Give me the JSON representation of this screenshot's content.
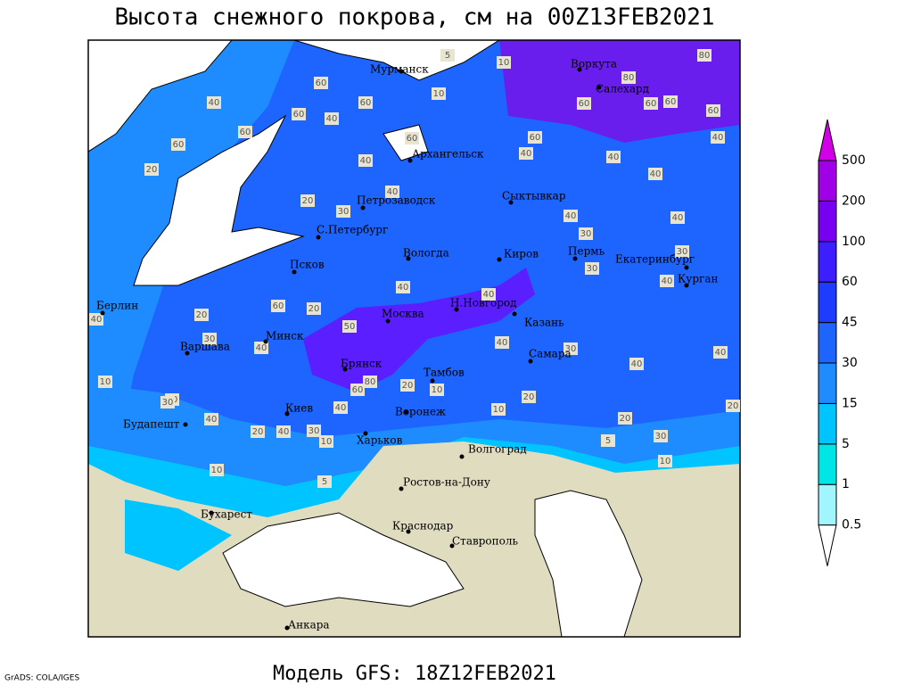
{
  "header": {
    "title": "Высота снежного покрова, см на 00Z13FEB2021"
  },
  "footer": {
    "model": "Модель GFS: 18Z12FEB2021",
    "credit": "GrADS: COLA/IGES"
  },
  "map": {
    "cities": [
      "Мурманск",
      "Воркута",
      "Салехард",
      "Архангельск",
      "Петрозаводск",
      "Сыктывкар",
      "С.Петербург",
      "Вологда",
      "Киров",
      "Пермь",
      "Екатеринбург",
      "Курган",
      "Псков",
      "Н.Новгород",
      "Берлин",
      "Москва",
      "Казань",
      "Минск",
      "Варшава",
      "Самара",
      "Брянск",
      "Тамбов",
      "Воронеж",
      "Киев",
      "Будапешт",
      "Харьков",
      "Волгоград",
      "Ростов-на-Дону",
      "Бухарест",
      "Краснодар",
      "Ставрополь",
      "Анкара"
    ],
    "contour_labels": [
      5,
      10,
      80,
      80,
      10,
      40,
      60,
      60,
      60,
      60,
      60,
      60,
      60,
      40,
      60,
      60,
      40,
      60,
      60,
      40,
      40,
      40,
      20,
      40,
      40,
      20,
      30,
      40,
      40,
      30,
      40,
      40,
      30,
      40,
      30,
      60,
      20,
      40,
      20,
      50,
      40,
      40,
      30,
      30,
      40,
      40,
      80,
      60,
      20,
      10,
      10,
      20,
      30,
      20,
      40,
      10,
      20,
      40,
      20,
      40,
      30,
      10,
      20,
      5,
      30,
      10,
      10,
      5
    ]
  },
  "legend": {
    "levels": [
      0.5,
      1,
      5,
      15,
      30,
      45,
      60,
      100,
      200,
      500
    ],
    "colors": [
      "#ffffff",
      "#a0f5ff",
      "#00e6e6",
      "#00c4ff",
      "#1e8cff",
      "#1e64ff",
      "#1e3cff",
      "#3c1eff",
      "#7800f0",
      "#a000e6",
      "#d200e6"
    ]
  }
}
